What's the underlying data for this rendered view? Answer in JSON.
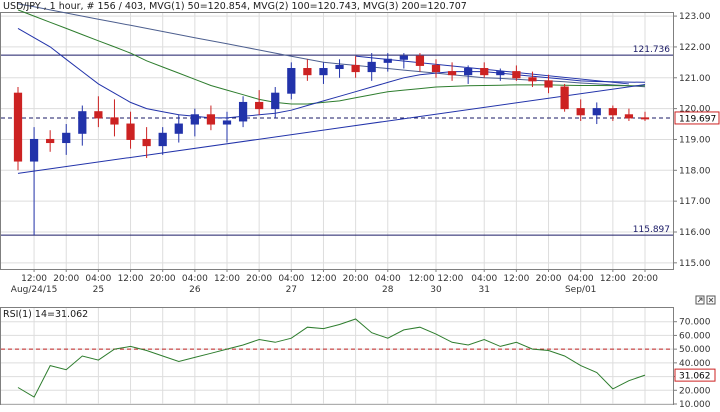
{
  "header": {
    "title": "USD/JPY , 1 hour, # 156 / 403, MVG(1) 50=120.854, MVG(2) 100=120.743, MVG(3) 200=120.707"
  },
  "icons": {
    "max": "maximize-icon",
    "close": "close-icon"
  },
  "colors": {
    "bg": "#ffffff",
    "frame": "#7f7f7f",
    "grid": "#dddddd",
    "text": "#333333",
    "candle_up": "#2233aa",
    "candle_down": "#cc2222",
    "ma50": "#2233aa",
    "ma100": "#2e7d2e",
    "ma200": "#4d5f8f",
    "trend": "#2233aa",
    "hline": "#1a1a66",
    "rsi_line": "#2e7d2e",
    "rsi_ref": "#c02020",
    "badge_bg": "#ffffff"
  },
  "chart_data": [
    {
      "type": "candlestick",
      "title": "USD/JPY , 1 hour, # 156 / 403, MVG(1) 50=120.854, MVG(2) 100=120.743, MVG(3) 200=120.707",
      "ylim": [
        114.8,
        123.1
      ],
      "y_ticks": [
        "123.00",
        "122.00",
        "121.00",
        "120.00",
        "119.00",
        "118.00",
        "117.00",
        "116.00",
        "115.00"
      ],
      "y_tick_values": [
        123,
        122,
        121,
        120,
        119,
        118,
        117,
        116,
        115
      ],
      "x_tick_labels": [
        "12:00",
        "20:00",
        "04:00",
        "12:00",
        "20:00",
        "04:00",
        "12:00",
        "20:00",
        "04:00",
        "12:00",
        "20:00",
        "04:00",
        "12:00 12:00",
        "04:00",
        "12:00",
        "20:00",
        "04:00",
        "12:00",
        "20:00"
      ],
      "x_tick_positions": [
        1,
        3,
        5,
        7,
        9,
        11,
        13,
        15,
        17,
        19,
        21,
        23,
        26,
        29,
        31,
        33,
        35,
        37,
        39
      ],
      "date_labels": [
        "Aug/24/15",
        "25",
        "26",
        "27",
        "28",
        "30",
        "31",
        "Sep/01"
      ],
      "date_positions": [
        1,
        5,
        11,
        17,
        23,
        26,
        29,
        35
      ],
      "num_periods": 40,
      "series": {
        "ohlc": [
          [
            120.5,
            120.7,
            118.0,
            118.3
          ],
          [
            118.3,
            119.4,
            115.9,
            119.0
          ],
          [
            119.0,
            119.3,
            118.6,
            118.9
          ],
          [
            118.9,
            119.5,
            118.5,
            119.2
          ],
          [
            119.2,
            120.1,
            118.8,
            119.9
          ],
          [
            119.9,
            120.4,
            119.4,
            119.7
          ],
          [
            119.7,
            120.3,
            119.1,
            119.5
          ],
          [
            119.5,
            119.9,
            118.7,
            119.0
          ],
          [
            119.0,
            119.4,
            118.4,
            118.8
          ],
          [
            118.8,
            119.4,
            118.5,
            119.2
          ],
          [
            119.2,
            119.8,
            118.9,
            119.5
          ],
          [
            119.5,
            120.0,
            119.1,
            119.8
          ],
          [
            119.8,
            120.1,
            119.3,
            119.5
          ],
          [
            119.5,
            119.9,
            118.9,
            119.6
          ],
          [
            119.6,
            120.4,
            119.4,
            120.2
          ],
          [
            120.2,
            120.6,
            119.8,
            120.0
          ],
          [
            120.0,
            120.7,
            119.7,
            120.5
          ],
          [
            120.5,
            121.5,
            120.3,
            121.3
          ],
          [
            121.3,
            121.6,
            120.9,
            121.1
          ],
          [
            121.1,
            121.5,
            120.8,
            121.3
          ],
          [
            121.3,
            121.6,
            121.0,
            121.4
          ],
          [
            121.4,
            121.7,
            121.0,
            121.2
          ],
          [
            121.2,
            121.8,
            120.9,
            121.5
          ],
          [
            121.5,
            121.8,
            121.2,
            121.6
          ],
          [
            121.6,
            121.8,
            121.3,
            121.7
          ],
          [
            121.7,
            121.8,
            121.2,
            121.4
          ],
          [
            121.4,
            121.6,
            121.0,
            121.2
          ],
          [
            121.2,
            121.5,
            120.9,
            121.1
          ],
          [
            121.1,
            121.4,
            120.8,
            121.3
          ],
          [
            121.3,
            121.5,
            121.0,
            121.1
          ],
          [
            121.1,
            121.3,
            120.9,
            121.2
          ],
          [
            121.2,
            121.4,
            120.9,
            121.0
          ],
          [
            121.0,
            121.2,
            120.7,
            120.9
          ],
          [
            120.9,
            121.1,
            120.5,
            120.7
          ],
          [
            120.7,
            120.8,
            119.9,
            120.0
          ],
          [
            120.0,
            120.3,
            119.6,
            119.8
          ],
          [
            119.8,
            120.2,
            119.5,
            120.0
          ],
          [
            120.0,
            120.1,
            119.6,
            119.8
          ],
          [
            119.8,
            120.0,
            119.6,
            119.7
          ],
          [
            119.7,
            119.9,
            119.6,
            119.697
          ]
        ],
        "ma50": [
          122.6,
          122.3,
          122.0,
          121.6,
          121.2,
          120.8,
          120.5,
          120.2,
          120.0,
          119.9,
          119.8,
          119.75,
          119.7,
          119.7,
          119.75,
          119.8,
          119.85,
          119.95,
          120.1,
          120.25,
          120.4,
          120.55,
          120.7,
          120.85,
          121.0,
          121.1,
          121.15,
          121.2,
          121.2,
          121.2,
          121.15,
          121.1,
          121.05,
          121.0,
          120.95,
          120.9,
          120.88,
          120.87,
          120.86,
          120.854
        ],
        "ma100": [
          123.2,
          123.0,
          122.8,
          122.6,
          122.4,
          122.2,
          122.0,
          121.8,
          121.55,
          121.35,
          121.15,
          120.95,
          120.75,
          120.6,
          120.45,
          120.3,
          120.2,
          120.15,
          120.15,
          120.2,
          120.25,
          120.35,
          120.45,
          120.55,
          120.6,
          120.65,
          120.7,
          120.72,
          120.74,
          120.75,
          120.76,
          120.77,
          120.77,
          120.77,
          120.76,
          120.75,
          120.75,
          120.745,
          120.744,
          120.743
        ],
        "ma200": [
          123.4,
          123.3,
          123.2,
          123.1,
          123.0,
          122.9,
          122.8,
          122.7,
          122.6,
          122.5,
          122.4,
          122.3,
          122.2,
          122.1,
          122.0,
          121.9,
          121.8,
          121.7,
          121.6,
          121.5,
          121.45,
          121.4,
          121.35,
          121.3,
          121.25,
          121.2,
          121.15,
          121.1,
          121.05,
          121.0,
          120.98,
          120.95,
          120.92,
          120.9,
          120.87,
          120.83,
          120.8,
          120.77,
          120.74,
          120.707
        ]
      },
      "trendlines": [
        {
          "from": [
            1,
            117.9
          ],
          "to": [
            40,
            120.78
          ]
        },
        {
          "from": [
            22,
            121.7
          ],
          "to": [
            39,
            120.8
          ]
        }
      ],
      "hlines": [
        {
          "value": 121.736,
          "label": "121.736",
          "style": "solid"
        },
        {
          "value": 115.897,
          "label": "115.897",
          "style": "solid"
        },
        {
          "value": 119.697,
          "label": "",
          "style": "dashed"
        }
      ],
      "last_price_label": "119.697"
    },
    {
      "type": "line",
      "title": "RSI(1) 14=31.062",
      "ylim": [
        10,
        80
      ],
      "y_ticks": [
        "70.000",
        "60.000",
        "50.000",
        "40.000",
        "30.000",
        "20.000",
        "10.000"
      ],
      "y_tick_values": [
        70,
        60,
        50,
        40,
        30,
        20,
        10
      ],
      "ref_line": 50,
      "values": [
        22,
        15,
        38,
        35,
        45,
        42,
        50,
        52,
        49,
        45,
        41,
        44,
        47,
        50,
        53,
        57,
        55,
        58,
        66,
        65,
        68,
        72,
        62,
        58,
        64,
        66,
        61,
        55,
        53,
        57,
        52,
        55,
        50,
        49,
        45,
        38,
        33,
        21,
        27,
        31.062
      ],
      "last_value_label": "31.062"
    }
  ]
}
